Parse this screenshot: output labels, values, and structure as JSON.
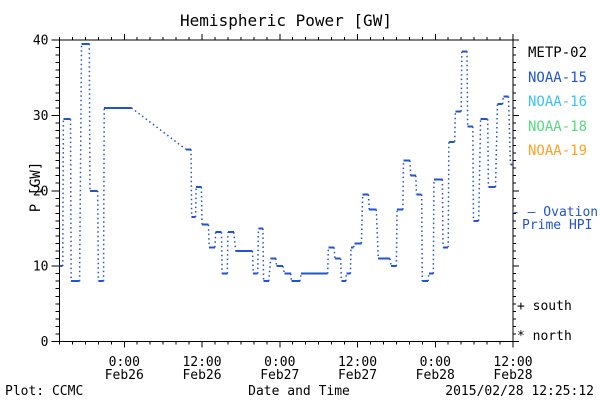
{
  "title": "Hemispheric Power [GW]",
  "legend": {
    "satellites": [
      {
        "label": "METP-02",
        "color": "#000000"
      },
      {
        "label": "NOAA-15",
        "color": "#2255cc"
      },
      {
        "label": "NOAA-16",
        "color": "#3bc3f2"
      },
      {
        "label": "NOAA-18",
        "color": "#57da7f"
      },
      {
        "label": "NOAA-19",
        "color": "#ffa320"
      }
    ],
    "series": {
      "line1": "- — Ovation",
      "line2": "Prime HPI",
      "color": "#2255cc"
    },
    "markers": {
      "south": "+ south",
      "north": "* north"
    }
  },
  "footer": {
    "left": "Plot: CCMC",
    "right": "2015/02/28 12:25:12"
  },
  "chart_data": {
    "type": "line",
    "title": "Hemispheric Power [GW]",
    "xlabel": "Date and Time",
    "ylabel": "P [GW]",
    "ylim": [
      0,
      40
    ],
    "y_major_ticks": [
      0,
      10,
      20,
      30,
      40
    ],
    "y_minor_step": 1,
    "x_start": "2015-02-25 14:00",
    "x_end": "2015-02-28 12:00",
    "x_total_hours": 70,
    "x_minor_step_hours": 2,
    "x_major_ticks": [
      {
        "hour": 10,
        "time": "0:00",
        "date": "Feb26"
      },
      {
        "hour": 22,
        "time": "12:00",
        "date": "Feb26"
      },
      {
        "hour": 34,
        "time": "0:00",
        "date": "Feb27"
      },
      {
        "hour": 46,
        "time": "12:00",
        "date": "Feb27"
      },
      {
        "hour": 58,
        "time": "0:00",
        "date": "Feb28"
      },
      {
        "hour": 70,
        "time": "12:00",
        "date": "Feb28"
      }
    ],
    "line_color": "#2255cc",
    "style": "solid horizontal satellite-pass segments connected by dotted lines",
    "passes_format": [
      "start_hour_after_x_start",
      "end_hour",
      "P_GW"
    ],
    "passes": [
      [
        0.0,
        0.5,
        10
      ],
      [
        0.6,
        1.7,
        29.5
      ],
      [
        1.8,
        3.1,
        8
      ],
      [
        3.4,
        4.6,
        39.5
      ],
      [
        4.7,
        5.9,
        20
      ],
      [
        6.0,
        6.8,
        8
      ],
      [
        6.9,
        11.1,
        31
      ],
      [
        19.5,
        20.3,
        25.5
      ],
      [
        20.4,
        21.0,
        16.5
      ],
      [
        21.1,
        21.9,
        20.5
      ],
      [
        22.0,
        23.0,
        15.5
      ],
      [
        23.1,
        24.0,
        12.5
      ],
      [
        24.1,
        25.0,
        14.5
      ],
      [
        25.1,
        25.9,
        9
      ],
      [
        26.0,
        26.9,
        14.5
      ],
      [
        27.2,
        29.8,
        12
      ],
      [
        29.9,
        30.6,
        9
      ],
      [
        30.7,
        31.4,
        15
      ],
      [
        31.5,
        32.3,
        8
      ],
      [
        32.6,
        33.4,
        11
      ],
      [
        33.5,
        34.5,
        10
      ],
      [
        34.7,
        35.7,
        9
      ],
      [
        35.8,
        37.1,
        8
      ],
      [
        37.3,
        41.4,
        9
      ],
      [
        41.5,
        42.4,
        12.5
      ],
      [
        42.5,
        43.4,
        11
      ],
      [
        43.5,
        44.2,
        8
      ],
      [
        44.3,
        44.9,
        9
      ],
      [
        45.0,
        45.4,
        12.5
      ],
      [
        45.5,
        46.6,
        13
      ],
      [
        46.8,
        47.7,
        19.5
      ],
      [
        47.8,
        48.9,
        17.5
      ],
      [
        49.2,
        51.0,
        11
      ],
      [
        51.2,
        52.0,
        10
      ],
      [
        52.1,
        53.0,
        17.5
      ],
      [
        53.1,
        54.1,
        24
      ],
      [
        54.2,
        55.0,
        22
      ],
      [
        55.1,
        55.9,
        19.5
      ],
      [
        56.0,
        56.9,
        8
      ],
      [
        57.0,
        57.7,
        9
      ],
      [
        57.8,
        59.1,
        21.5
      ],
      [
        59.2,
        60.0,
        12.5
      ],
      [
        60.1,
        61.0,
        26.5
      ],
      [
        61.1,
        62.0,
        30.5
      ],
      [
        62.1,
        62.9,
        38.5
      ],
      [
        63.0,
        63.8,
        28.5
      ],
      [
        63.9,
        64.7,
        16
      ],
      [
        65.0,
        66.1,
        29.5
      ],
      [
        66.2,
        67.3,
        20.5
      ],
      [
        67.6,
        68.4,
        31.5
      ],
      [
        68.5,
        69.3,
        32.5
      ],
      [
        69.6,
        70.0,
        23.5
      ]
    ]
  }
}
